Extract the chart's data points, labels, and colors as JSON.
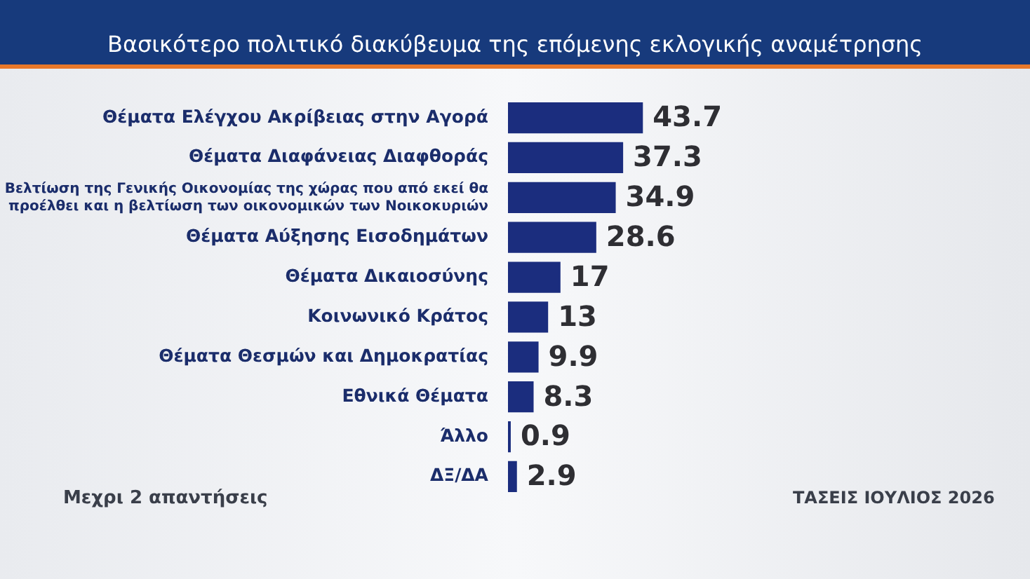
{
  "chart_data": {
    "type": "bar",
    "orientation": "horizontal",
    "title": "Βασικότερο πολιτικό διακύβευμα της επόμενης εκλογικής αναμέτρησης",
    "categories": [
      "Θέματα Ελέγχου Ακρίβειας στην Αγορά",
      "Θέματα Διαφάνειας Διαφθοράς",
      "Βελτίωση της Γενικής Οικονομίας της χώρας που από εκεί θα\nπροέλθει και η βελτίωση των οικονομικών των Νοικοκυριών",
      "Θέματα Αύξησης Εισοδημάτων",
      "Θέματα Δικαιοσύνης",
      "Κοινωνικό Κράτος",
      "Θέματα Θεσμών και Δημοκρατίας",
      "Εθνικά Θέματα",
      "Άλλο",
      "ΔΞ/ΔΑ"
    ],
    "values": [
      43.7,
      37.3,
      34.9,
      28.6,
      17,
      13,
      9.9,
      8.3,
      0.9,
      2.9
    ],
    "color": "#1b2d7e",
    "data_labels": true,
    "legend": false,
    "annotations": [
      "Μεχρι 2 απαντήσεις",
      "ΤΑΣΕΙΣ ΙΟΥΛΙΟΣ 2026"
    ]
  }
}
